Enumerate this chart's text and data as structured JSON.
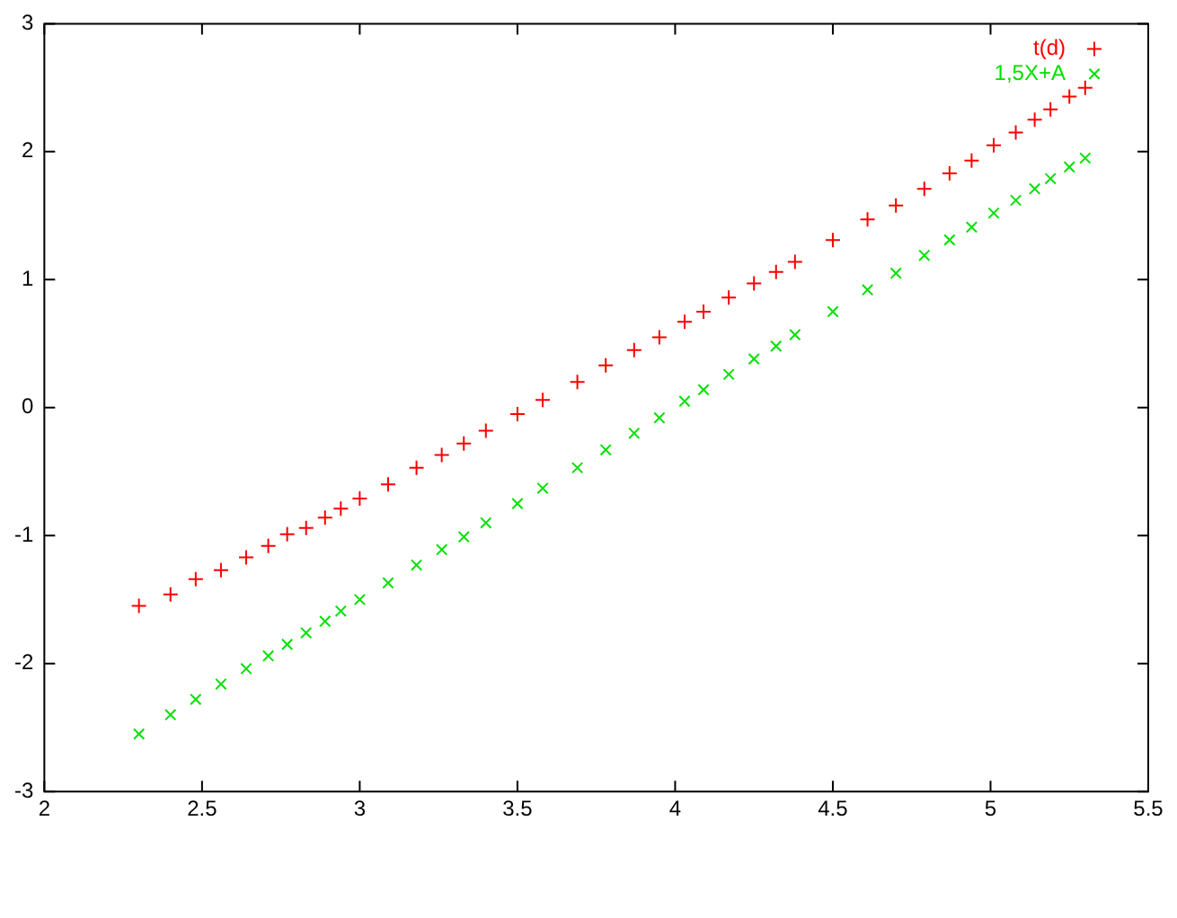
{
  "chart_data": {
    "type": "scatter",
    "xlim": [
      2,
      5.5
    ],
    "ylim": [
      -3,
      3
    ],
    "xticks": [
      2,
      2.5,
      3,
      3.5,
      4,
      4.5,
      5,
      5.5
    ],
    "yticks": [
      -3,
      -2,
      -1,
      0,
      1,
      2,
      3
    ],
    "grid": false,
    "legend": "top right",
    "x": [
      2.3,
      2.4,
      2.48,
      2.56,
      2.64,
      2.71,
      2.77,
      2.83,
      2.89,
      2.94,
      3.0,
      3.09,
      3.18,
      3.26,
      3.33,
      3.4,
      3.5,
      3.58,
      3.69,
      3.78,
      3.87,
      3.95,
      4.03,
      4.09,
      4.17,
      4.25,
      4.32,
      4.38,
      4.5,
      4.61,
      4.7,
      4.79,
      4.87,
      4.94,
      5.01,
      5.08,
      5.14,
      5.19,
      5.25,
      5.3
    ],
    "series": [
      {
        "name": "t(d)",
        "color": "#ff0000",
        "marker": "cross",
        "values": [
          -1.55,
          -1.46,
          -1.34,
          -1.27,
          -1.17,
          -1.08,
          -0.99,
          -0.94,
          -0.86,
          -0.79,
          -0.71,
          -0.6,
          -0.47,
          -0.37,
          -0.28,
          -0.18,
          -0.05,
          0.06,
          0.2,
          0.33,
          0.45,
          0.55,
          0.67,
          0.75,
          0.86,
          0.97,
          1.06,
          1.14,
          1.31,
          1.47,
          1.58,
          1.71,
          1.83,
          1.93,
          2.05,
          2.15,
          2.25,
          2.33,
          2.43,
          2.5
        ]
      },
      {
        "name": "1,5X+A",
        "color": "#00e000",
        "marker": "x",
        "values": [
          -2.55,
          -2.4,
          -2.28,
          -2.16,
          -2.04,
          -1.94,
          -1.85,
          -1.76,
          -1.67,
          -1.59,
          -1.5,
          -1.37,
          -1.23,
          -1.11,
          -1.01,
          -0.9,
          -0.75,
          -0.63,
          -0.47,
          -0.33,
          -0.2,
          -0.08,
          0.05,
          0.14,
          0.26,
          0.38,
          0.48,
          0.57,
          0.75,
          0.92,
          1.05,
          1.19,
          1.31,
          1.41,
          1.52,
          1.62,
          1.71,
          1.79,
          1.88,
          1.95
        ]
      }
    ]
  }
}
